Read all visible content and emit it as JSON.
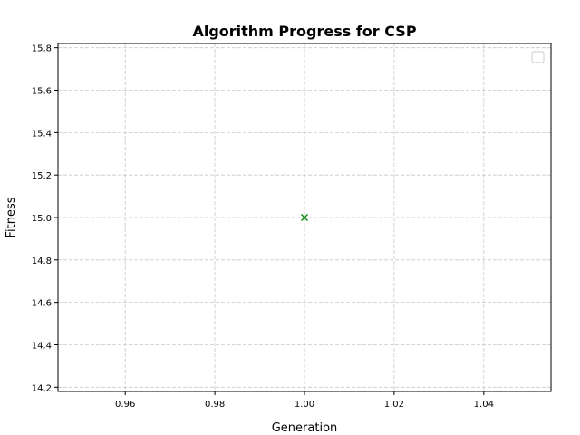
{
  "chart_data": {
    "type": "scatter",
    "title": "Algorithm Progress for CSP",
    "xlabel": "Generation",
    "ylabel": "Fitness",
    "xlim": [
      0.945,
      1.055
    ],
    "ylim": [
      14.18,
      15.82
    ],
    "xticks": [
      {
        "value": 0.96,
        "label": "0.96"
      },
      {
        "value": 0.98,
        "label": "0.98"
      },
      {
        "value": 1.0,
        "label": "1.00"
      },
      {
        "value": 1.02,
        "label": "1.02"
      },
      {
        "value": 1.04,
        "label": "1.04"
      }
    ],
    "yticks": [
      {
        "value": 14.2,
        "label": "14.2"
      },
      {
        "value": 14.4,
        "label": "14.4"
      },
      {
        "value": 14.6,
        "label": "14.6"
      },
      {
        "value": 14.8,
        "label": "14.8"
      },
      {
        "value": 15.0,
        "label": "15.0"
      },
      {
        "value": 15.2,
        "label": "15.2"
      },
      {
        "value": 15.4,
        "label": "15.4"
      },
      {
        "value": 15.6,
        "label": "15.6"
      },
      {
        "value": 15.8,
        "label": "15.8"
      }
    ],
    "grid": true,
    "legend": "top-right (empty)",
    "series": [
      {
        "marker": "x",
        "color": "#008000",
        "points": [
          {
            "x": 1.0,
            "y": 15.0
          }
        ]
      }
    ]
  }
}
